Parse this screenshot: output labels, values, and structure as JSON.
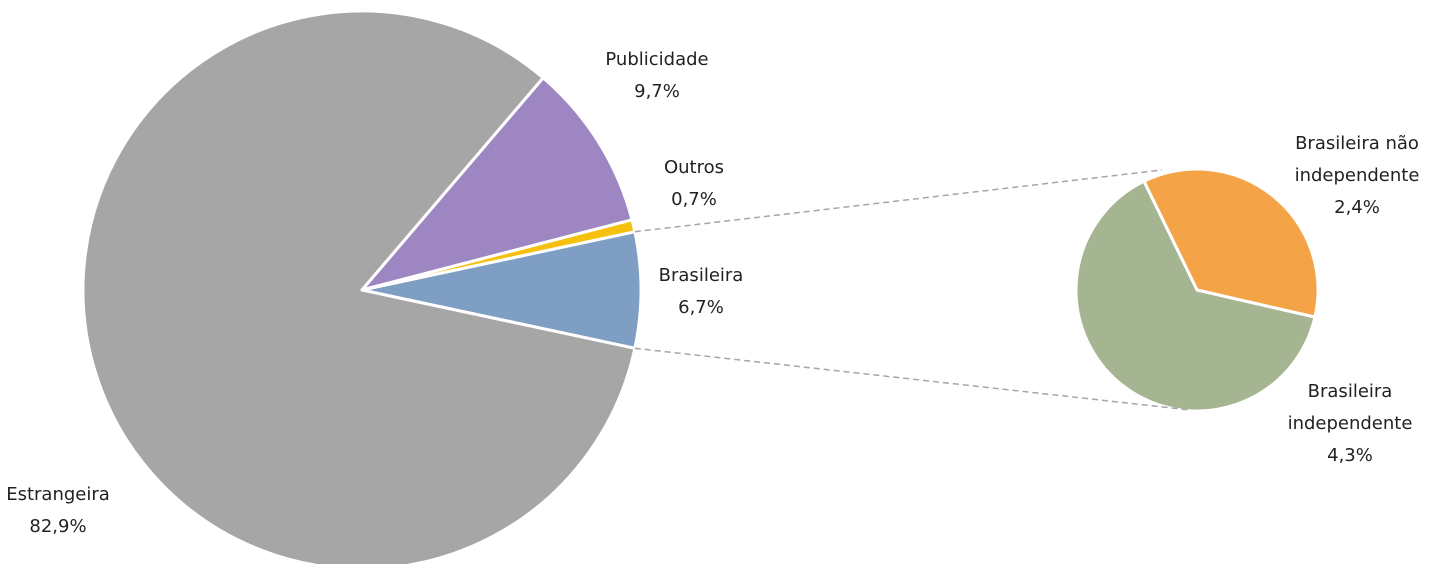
{
  "chart_data": [
    {
      "type": "pie",
      "categories": [
        "Brasileira",
        "Estrangeira",
        "Publicidade",
        "Outros"
      ],
      "values": [
        6.7,
        82.9,
        9.7,
        0.7
      ],
      "value_labels": [
        "6,7%",
        "82,9%",
        "9,7%",
        "0,7%"
      ],
      "colors": [
        "#7f9ec3",
        "#a6a6a6",
        "#9e86c2",
        "#f5c10e"
      ]
    },
    {
      "type": "pie",
      "categories": [
        "Brasileira não independente",
        "Brasileira independente"
      ],
      "values": [
        2.4,
        4.3
      ],
      "value_labels": [
        "2,4%",
        "4,3%"
      ],
      "colors": [
        "#f4a447",
        "#a5b592"
      ]
    }
  ]
}
